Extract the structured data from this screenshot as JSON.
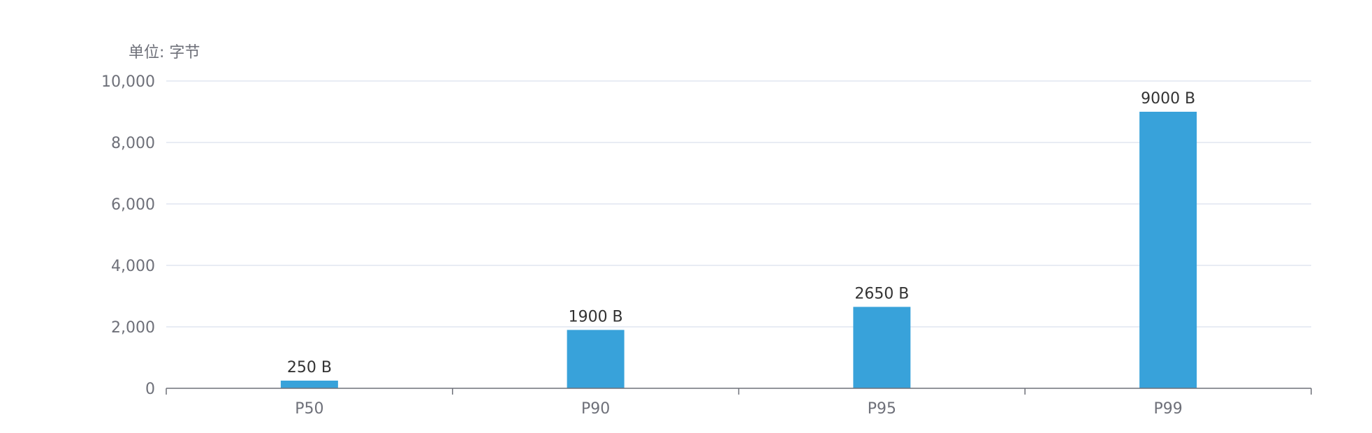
{
  "chart_data": {
    "type": "bar",
    "unit_label": "单位: 字节",
    "categories": [
      "P50",
      "P90",
      "P95",
      "P99"
    ],
    "values": [
      250,
      1900,
      2650,
      9000
    ],
    "data_labels": [
      "250 B",
      "1900 B",
      "2650 B",
      "9000 B"
    ],
    "ylim": [
      0,
      10000
    ],
    "y_ticks": [
      0,
      2000,
      4000,
      6000,
      8000,
      10000
    ],
    "y_tick_labels": [
      "0",
      "2,000",
      "4,000",
      "6,000",
      "8,000",
      "10,000"
    ],
    "grid": true,
    "legend": "none",
    "colors": {
      "bar": "#38a2da",
      "grid": "#e0e6f1",
      "axis": "#6e7079",
      "text": "#6e7079",
      "label": "#333333"
    }
  }
}
